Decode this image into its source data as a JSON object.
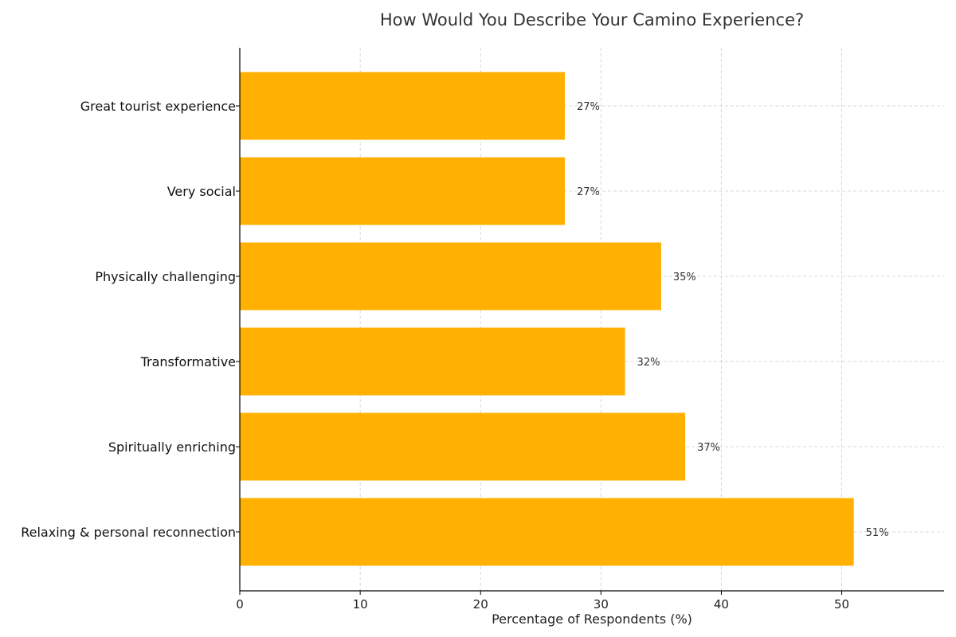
{
  "chart_data": {
    "type": "bar",
    "orientation": "horizontal",
    "title": "How Would You Describe Your Camino Experience?",
    "xlabel": "Percentage of Respondents (%)",
    "ylabel": "",
    "categories": [
      "Relaxing & personal reconnection",
      "Spiritually enriching",
      "Transformative",
      "Physically challenging",
      "Very social",
      "Great tourist experience"
    ],
    "values": [
      51,
      37,
      32,
      35,
      27,
      27
    ],
    "value_labels": [
      "51%",
      "37%",
      "32%",
      "35%",
      "27%",
      "27%"
    ],
    "xlim": [
      0,
      58.5
    ],
    "xticks": [
      0,
      10,
      20,
      30,
      40,
      50
    ],
    "grid": true,
    "bar_color": "#FFB000"
  }
}
